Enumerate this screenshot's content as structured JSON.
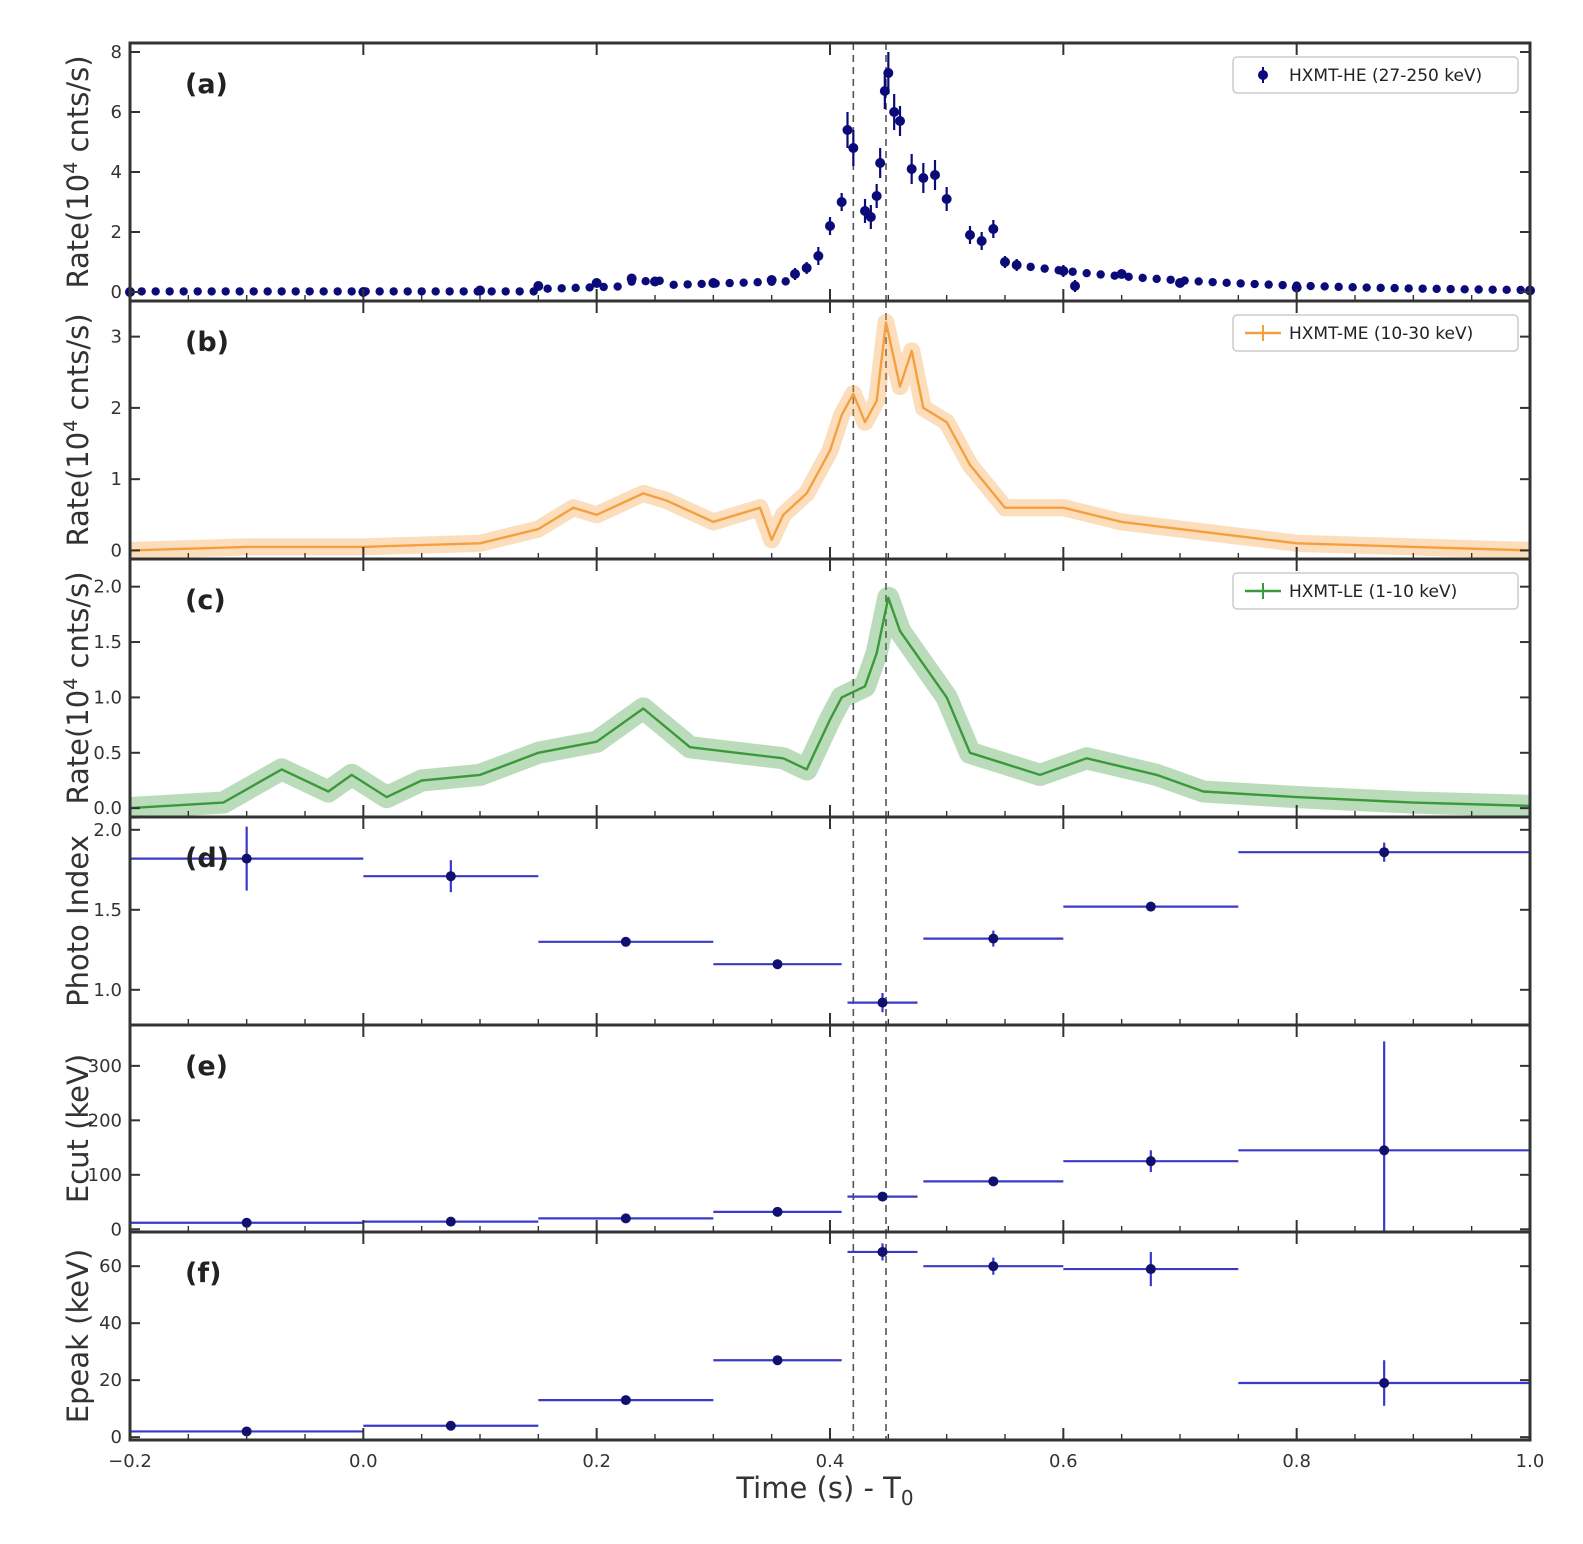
{
  "figure": {
    "xlabel": "Time (s) - T",
    "xlabel_sub": "0"
  },
  "chart_data": [
    {
      "panel": "a",
      "type": "scatter",
      "panel_label": "(a)",
      "ylabel": "Rate(10",
      "ylabel_sup": "4",
      "ylabel_tail": " cnts/s)",
      "xlim": [
        -0.2,
        1.0
      ],
      "ylim": [
        -0.3,
        8.3
      ],
      "yticks": [
        0,
        2,
        4,
        6,
        8
      ],
      "color": "#0a0a78",
      "legend": {
        "label": "HXMT-HE (27-250 keV)",
        "placement": "top-right",
        "marker": "dot"
      },
      "series": [
        {
          "name": "HXMT-HE (27-250 keV)",
          "binned": true,
          "x": [
            -0.2,
            0.0,
            0.1,
            0.15,
            0.2,
            0.23,
            0.25,
            0.3,
            0.35,
            0.37,
            0.38,
            0.39,
            0.4,
            0.41,
            0.415,
            0.42,
            0.43,
            0.435,
            0.44,
            0.443,
            0.447,
            0.45,
            0.455,
            0.46,
            0.47,
            0.48,
            0.49,
            0.5,
            0.52,
            0.53,
            0.54,
            0.55,
            0.56,
            0.6,
            0.61,
            0.65,
            0.7,
            0.8,
            1.0
          ],
          "y": [
            0.0,
            0.0,
            0.05,
            0.2,
            0.3,
            0.45,
            0.35,
            0.3,
            0.4,
            0.6,
            0.8,
            1.2,
            2.2,
            3.0,
            5.4,
            4.8,
            2.7,
            2.5,
            3.2,
            4.3,
            6.7,
            7.3,
            6.0,
            5.7,
            4.1,
            3.8,
            3.9,
            3.1,
            1.9,
            1.7,
            2.1,
            1.0,
            0.9,
            0.7,
            0.2,
            0.6,
            0.3,
            0.15,
            0.05
          ],
          "yerr": [
            0.12,
            0.12,
            0.12,
            0.12,
            0.12,
            0.15,
            0.12,
            0.12,
            0.12,
            0.2,
            0.2,
            0.3,
            0.3,
            0.3,
            0.6,
            0.6,
            0.4,
            0.4,
            0.4,
            0.5,
            0.6,
            0.7,
            0.6,
            0.5,
            0.5,
            0.5,
            0.5,
            0.4,
            0.3,
            0.3,
            0.3,
            0.2,
            0.2,
            0.2,
            0.2,
            0.15,
            0.15,
            0.12,
            0.12
          ]
        }
      ],
      "vlines": [
        0.42,
        0.448
      ]
    },
    {
      "panel": "b",
      "type": "line",
      "panel_label": "(b)",
      "ylabel": "Rate(10",
      "ylabel_sup": "4",
      "ylabel_tail": " cnts/s)",
      "xlim": [
        -0.2,
        1.0
      ],
      "ylim": [
        -0.12,
        3.5
      ],
      "yticks": [
        0,
        1,
        2,
        3
      ],
      "color": "#f5a040",
      "legend": {
        "label": "HXMT-ME (10-30 keV)",
        "placement": "top-right",
        "marker": "cross"
      },
      "series": [
        {
          "name": "HXMT-ME (10-30 keV)",
          "x": [
            -0.2,
            -0.1,
            0.0,
            0.1,
            0.15,
            0.18,
            0.2,
            0.24,
            0.26,
            0.3,
            0.34,
            0.35,
            0.36,
            0.38,
            0.4,
            0.41,
            0.42,
            0.43,
            0.44,
            0.448,
            0.46,
            0.47,
            0.48,
            0.5,
            0.52,
            0.55,
            0.6,
            0.65,
            0.7,
            0.8,
            0.9,
            1.0
          ],
          "y": [
            0.0,
            0.05,
            0.05,
            0.1,
            0.3,
            0.6,
            0.5,
            0.8,
            0.7,
            0.4,
            0.6,
            0.15,
            0.5,
            0.8,
            1.4,
            1.9,
            2.2,
            1.8,
            2.1,
            3.2,
            2.3,
            2.8,
            2.0,
            1.8,
            1.2,
            0.6,
            0.6,
            0.4,
            0.3,
            0.1,
            0.05,
            0.0
          ],
          "yerr": 0.12
        }
      ],
      "vlines": [
        0.42,
        0.448
      ]
    },
    {
      "panel": "c",
      "type": "line",
      "panel_label": "(c)",
      "ylabel": "Rate(10",
      "ylabel_sup": "4",
      "ylabel_tail": " cnts/s)",
      "xlim": [
        -0.2,
        1.0
      ],
      "ylim": [
        -0.08,
        2.25
      ],
      "yticks": [
        0.0,
        0.5,
        1.0,
        1.5,
        2.0
      ],
      "ytick_format": "fixed1",
      "color": "#3a9a3a",
      "legend": {
        "label": "HXMT-LE (1-10 keV)",
        "placement": "top-right",
        "marker": "cross"
      },
      "series": [
        {
          "name": "HXMT-LE (1-10 keV)",
          "x": [
            -0.2,
            -0.12,
            -0.07,
            -0.03,
            -0.01,
            0.02,
            0.05,
            0.1,
            0.15,
            0.2,
            0.24,
            0.28,
            0.32,
            0.36,
            0.38,
            0.4,
            0.41,
            0.43,
            0.44,
            0.45,
            0.46,
            0.48,
            0.5,
            0.52,
            0.55,
            0.58,
            0.62,
            0.68,
            0.72,
            0.8,
            0.9,
            1.0
          ],
          "y": [
            0.0,
            0.05,
            0.35,
            0.15,
            0.3,
            0.1,
            0.25,
            0.3,
            0.5,
            0.6,
            0.9,
            0.55,
            0.5,
            0.45,
            0.35,
            0.8,
            1.0,
            1.1,
            1.4,
            1.9,
            1.6,
            1.3,
            1.0,
            0.5,
            0.4,
            0.3,
            0.45,
            0.3,
            0.15,
            0.1,
            0.05,
            0.02
          ],
          "yerr": 0.1
        }
      ],
      "vlines": [
        0.42,
        0.448
      ]
    },
    {
      "panel": "d",
      "type": "scatter",
      "panel_label": "(d)",
      "ylabel": "Photo Index",
      "xlim": [
        -0.2,
        1.0
      ],
      "ylim": [
        0.78,
        2.08
      ],
      "yticks": [
        1.0,
        1.5,
        2.0
      ],
      "ytick_format": "fixed1",
      "color": "#3a3ac8",
      "series": [
        {
          "x": [
            -0.1,
            0.075,
            0.225,
            0.355,
            0.445,
            0.54,
            0.675,
            0.875
          ],
          "xerr": [
            0.1,
            0.075,
            0.075,
            0.055,
            0.03,
            0.06,
            0.075,
            0.125
          ],
          "y": [
            1.82,
            1.71,
            1.3,
            1.16,
            0.92,
            1.32,
            1.52,
            1.86
          ],
          "yerr": [
            0.2,
            0.1,
            0.03,
            0.03,
            0.06,
            0.05,
            0.03,
            0.06
          ]
        }
      ],
      "vlines": [
        0.42,
        0.448
      ]
    },
    {
      "panel": "e",
      "type": "scatter",
      "panel_label": "(e)",
      "ylabel": "Ecut (keV)",
      "xlim": [
        -0.2,
        1.0
      ],
      "ylim": [
        -5,
        375
      ],
      "yticks": [
        0,
        100,
        200,
        300
      ],
      "color": "#3a3ac8",
      "series": [
        {
          "x": [
            -0.1,
            0.075,
            0.225,
            0.355,
            0.445,
            0.54,
            0.675,
            0.875
          ],
          "xerr": [
            0.1,
            0.075,
            0.075,
            0.055,
            0.03,
            0.06,
            0.075,
            0.125
          ],
          "y": [
            12,
            14,
            20,
            32,
            60,
            88,
            125,
            145
          ],
          "yerr": [
            2,
            2,
            3,
            4,
            6,
            8,
            20,
            200
          ]
        }
      ],
      "vlines": [
        0.42,
        0.448
      ]
    },
    {
      "panel": "f",
      "type": "scatter",
      "panel_label": "(f)",
      "ylabel": "Epeak (keV)",
      "xlim": [
        -0.2,
        1.0
      ],
      "ylim": [
        -1,
        72
      ],
      "yticks": [
        0,
        20,
        40,
        60
      ],
      "xticks": [
        -0.2,
        0.0,
        0.2,
        0.4,
        0.6,
        0.8,
        1.0
      ],
      "xtick_labels": [
        "−0.2",
        "0.0",
        "0.2",
        "0.4",
        "0.6",
        "0.8",
        "1.0"
      ],
      "color": "#3a3ac8",
      "series": [
        {
          "x": [
            -0.1,
            0.075,
            0.225,
            0.355,
            0.445,
            0.54,
            0.675,
            0.875
          ],
          "xerr": [
            0.1,
            0.075,
            0.075,
            0.055,
            0.03,
            0.06,
            0.075,
            0.125
          ],
          "y": [
            2,
            4,
            13,
            27,
            65,
            60,
            59,
            19
          ],
          "yerr": [
            0.6,
            0.6,
            1,
            1,
            3,
            3,
            6,
            8
          ]
        }
      ],
      "vlines": [
        0.42,
        0.448
      ]
    }
  ]
}
